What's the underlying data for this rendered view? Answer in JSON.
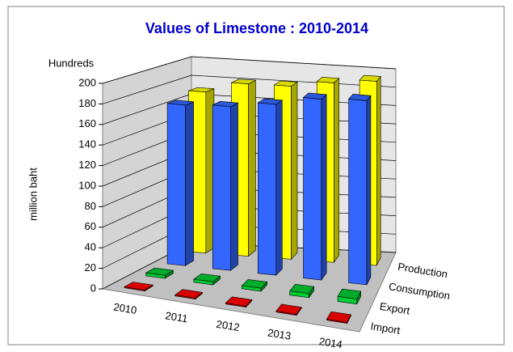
{
  "chart_data": {
    "type": "bar3d",
    "title": "Values of Limestone : 2010-2014",
    "y_unit_label": "Hundreds",
    "y_axis_label": "million baht",
    "categories": [
      "2010",
      "2011",
      "2012",
      "2013",
      "2014"
    ],
    "series": [
      {
        "name": "Production",
        "color": "#ffff00",
        "values": [
          170,
          182,
          183,
          190,
          195
        ]
      },
      {
        "name": "Consumption",
        "color": "#3366ff",
        "values": [
          165,
          168,
          175,
          185,
          188
        ]
      },
      {
        "name": "Export",
        "color": "#00cc33",
        "values": [
          3,
          3,
          3,
          4,
          5
        ]
      },
      {
        "name": "Import",
        "color": "#ff0000",
        "values": [
          1,
          1,
          1,
          1,
          1
        ]
      }
    ],
    "ylim": [
      0,
      200
    ],
    "yticks": [
      0,
      20,
      40,
      60,
      80,
      100,
      120,
      140,
      160,
      180,
      200
    ],
    "grid": true
  }
}
